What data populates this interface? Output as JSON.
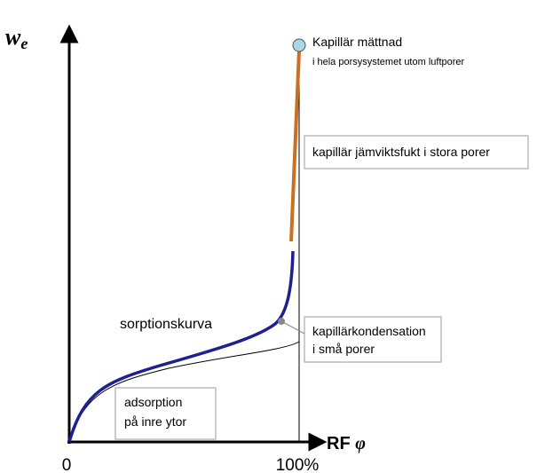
{
  "axes": {
    "y_label": "w",
    "y_subscript": "e",
    "x_label": "RF",
    "x_symbol": "φ",
    "x_start": "0",
    "x_end": "100%"
  },
  "annotations": {
    "saturation": {
      "title": "Kapillär mättnad",
      "subtitle": "i hela porsysystemet utom luftporer"
    },
    "large_pores": "kapillär jämviktsfukt i stora porer",
    "condensation": [
      "kapillärkondensation",
      "i små porer"
    ],
    "curve": "sorptionskurva",
    "adsorption": [
      "adsorption",
      "på inre ytor"
    ]
  }
}
